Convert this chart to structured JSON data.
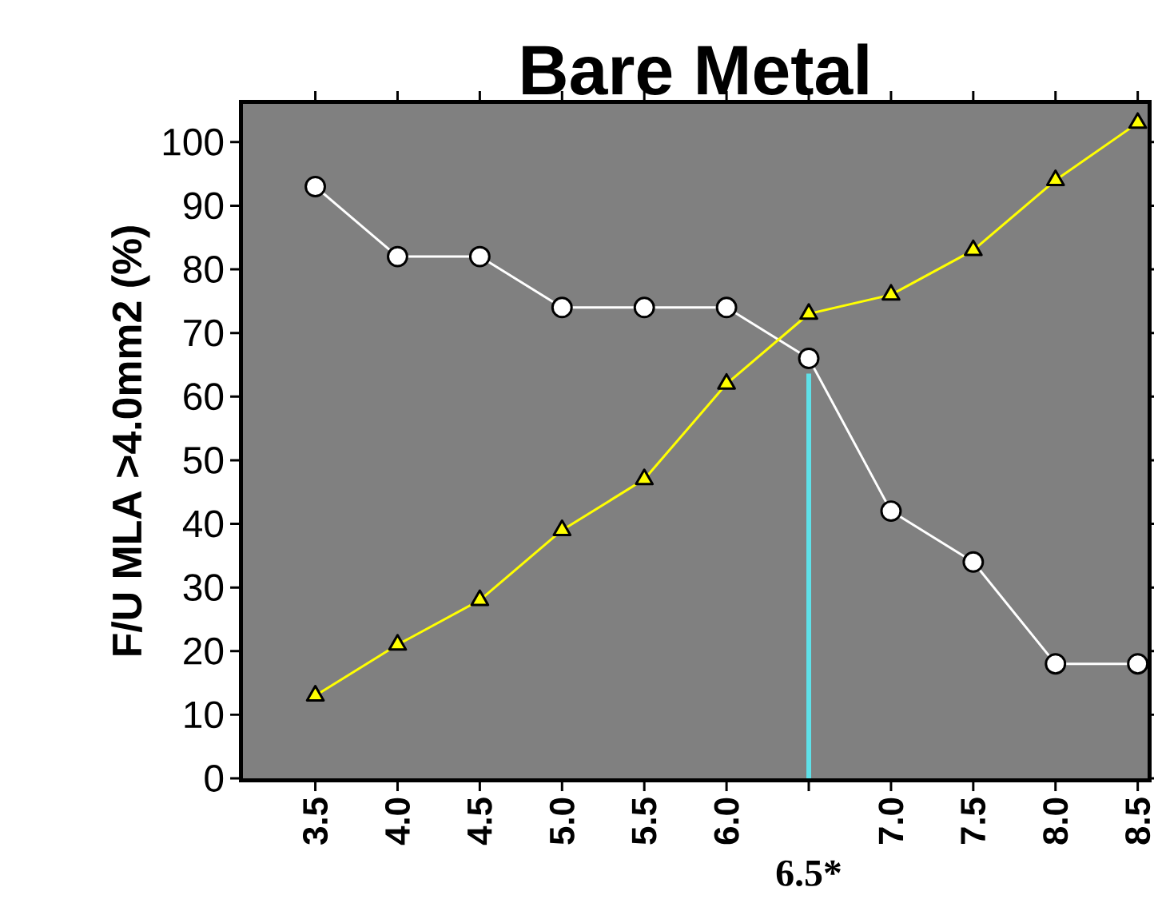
{
  "chart_data": {
    "type": "line",
    "title": "Bare Metal",
    "ylabel": "F/U MLA >4.0mm2 (%)",
    "x": [
      3.5,
      4.0,
      4.5,
      5.0,
      5.5,
      6.0,
      6.5,
      7.0,
      7.5,
      8.0,
      8.5
    ],
    "series": [
      {
        "color": "#ffffff",
        "marker": "circle",
        "values": [
          93,
          82,
          82,
          74,
          74,
          74,
          66,
          42,
          34,
          18,
          18
        ]
      },
      {
        "color": "#ffff00",
        "marker": "triangle",
        "values": [
          13,
          21,
          28,
          39,
          47,
          62,
          73,
          76,
          83,
          94,
          103
        ]
      }
    ],
    "xlim": [
      3.06,
      8.56
    ],
    "ylim": [
      0,
      106
    ],
    "xticks": [
      3.5,
      {
        "value": 4,
        "label": "4.0"
      },
      4.5,
      {
        "value": 5,
        "label": "5.0"
      },
      5.5,
      {
        "value": 6,
        "label": "6.0"
      },
      {
        "value": 6.5,
        "label": null
      },
      {
        "value": 7,
        "label": "7.0"
      },
      7.5,
      {
        "value": 8,
        "label": "8.0"
      },
      8.5
    ],
    "yticks": [
      0,
      10,
      20,
      30,
      40,
      50,
      60,
      70,
      80,
      90,
      100
    ],
    "ref_lines": [
      {
        "axis": "x",
        "value": 6.5,
        "label": "6.5*",
        "color": "#5fe0e8"
      }
    ],
    "line_style": "solid"
  }
}
